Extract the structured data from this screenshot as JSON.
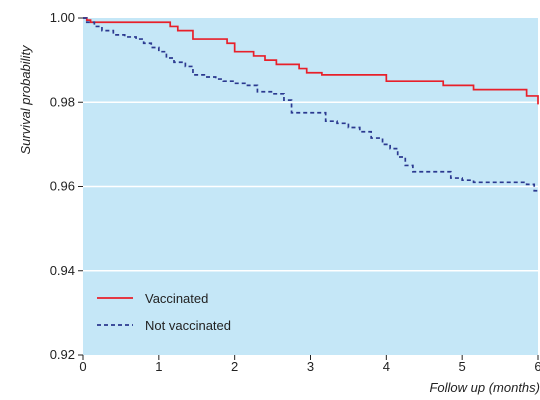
{
  "chart_data": {
    "type": "line",
    "xlabel": "Follow up (months)",
    "ylabel": "Survival probability",
    "xlim": [
      0,
      6
    ],
    "ylim": [
      0.92,
      1.0
    ],
    "x_ticks": [
      0,
      1,
      2,
      3,
      4,
      5,
      6
    ],
    "x_tick_labels": [
      "0",
      "1",
      "2",
      "3",
      "4",
      "5",
      "6"
    ],
    "y_ticks": [
      0.92,
      0.94,
      0.96,
      0.98,
      1.0
    ],
    "y_tick_labels": [
      "0.92",
      "0.94",
      "0.96",
      "0.98",
      "1.00"
    ],
    "grid": "horizontal",
    "legend_position": "bottom-left",
    "colors": {
      "plot_background": "#c5e7f7",
      "grid": "#ffffff",
      "vaccinated": "#e8202a",
      "not_vaccinated": "#2b3990"
    },
    "series": [
      {
        "name": "Vaccinated",
        "style": "solid",
        "color": "#e8202a",
        "x": [
          0,
          0.05,
          0.1,
          1.15,
          1.25,
          1.45,
          1.9,
          2.0,
          2.25,
          2.4,
          2.55,
          2.85,
          2.95,
          3.15,
          4.0,
          4.75,
          5.15,
          5.85,
          6.0
        ],
        "y": [
          1.0,
          0.9995,
          0.999,
          0.998,
          0.997,
          0.995,
          0.994,
          0.992,
          0.991,
          0.99,
          0.989,
          0.988,
          0.987,
          0.9865,
          0.985,
          0.984,
          0.983,
          0.9815,
          0.9795
        ]
      },
      {
        "name": "Not vaccinated",
        "style": "dashed",
        "color": "#2b3990",
        "x": [
          0,
          0.05,
          0.15,
          0.25,
          0.4,
          0.55,
          0.7,
          0.8,
          0.9,
          1.0,
          1.1,
          1.2,
          1.35,
          1.45,
          1.6,
          1.75,
          1.85,
          2.0,
          2.15,
          2.3,
          2.5,
          2.65,
          2.75,
          3.05,
          3.2,
          3.35,
          3.5,
          3.65,
          3.8,
          3.95,
          4.05,
          4.15,
          4.25,
          4.35,
          4.65,
          4.85,
          5.0,
          5.15,
          5.3,
          5.45,
          5.85,
          5.95,
          6.0
        ],
        "y": [
          1.0,
          0.999,
          0.998,
          0.997,
          0.996,
          0.9955,
          0.995,
          0.994,
          0.993,
          0.992,
          0.9905,
          0.9895,
          0.9885,
          0.9865,
          0.986,
          0.9855,
          0.985,
          0.9845,
          0.984,
          0.9825,
          0.982,
          0.9805,
          0.9775,
          0.9775,
          0.9755,
          0.975,
          0.974,
          0.973,
          0.9715,
          0.97,
          0.969,
          0.967,
          0.965,
          0.9635,
          0.9635,
          0.962,
          0.9615,
          0.961,
          0.961,
          0.961,
          0.9605,
          0.959,
          0.959
        ]
      }
    ]
  }
}
